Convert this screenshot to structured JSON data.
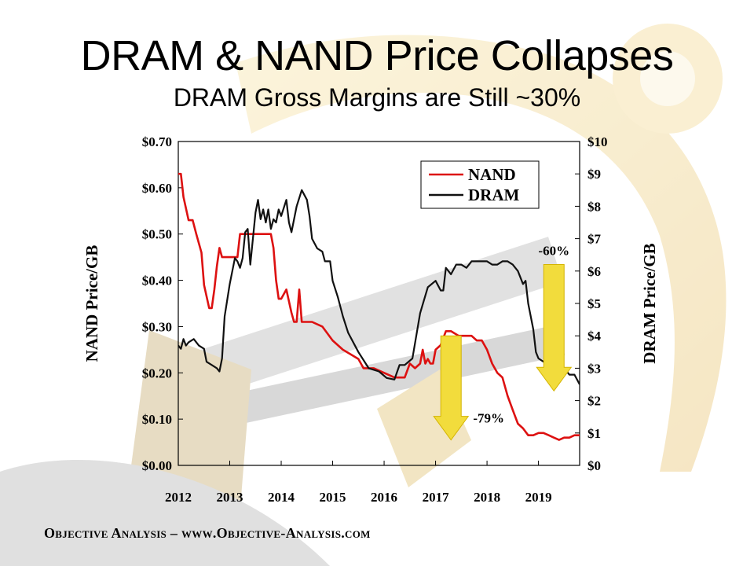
{
  "title": "DRAM & NAND Price Collapses",
  "subtitle": "DRAM Gross Margins are Still ~30%",
  "footer": "Objective Analysis – www.Objective-Analysis.com",
  "chart_data": {
    "type": "line",
    "x_axis": {
      "label": "",
      "ticks": [
        "2012",
        "2013",
        "2014",
        "2015",
        "2016",
        "2017",
        "2018",
        "2019"
      ],
      "range": [
        2012,
        2019.8
      ]
    },
    "y_left": {
      "label": "NAND Price/GB",
      "range": [
        0,
        0.7
      ],
      "ticks": [
        "$0.00",
        "$0.10",
        "$0.20",
        "$0.30",
        "$0.40",
        "$0.50",
        "$0.60",
        "$0.70"
      ]
    },
    "y_right": {
      "label": "DRAM Price/GB",
      "range": [
        0,
        10
      ],
      "ticks": [
        "$0",
        "$1",
        "$2",
        "$3",
        "$4",
        "$5",
        "$6",
        "$7",
        "$8",
        "$9",
        "$10"
      ]
    },
    "legend": {
      "position": "top-right",
      "entries": [
        "NAND",
        "DRAM"
      ]
    },
    "colors": {
      "NAND": "#dd1111",
      "DRAM": "#111111",
      "arrow": "#f2dc3c",
      "arrow_edge": "#d4b400"
    },
    "series": [
      {
        "name": "NAND",
        "axis": "left",
        "x": [
          2012.0,
          2012.05,
          2012.1,
          2012.2,
          2012.28,
          2012.35,
          2012.45,
          2012.5,
          2012.56,
          2012.6,
          2012.65,
          2012.7,
          2012.75,
          2012.8,
          2012.85,
          2012.95,
          2013.05,
          2013.15,
          2013.2,
          2013.3,
          2013.35,
          2013.5,
          2013.6,
          2013.8,
          2013.85,
          2013.9,
          2013.95,
          2014.0,
          2014.1,
          2014.2,
          2014.25,
          2014.3,
          2014.35,
          2014.4,
          2014.5,
          2014.6,
          2014.8,
          2015.0,
          2015.2,
          2015.35,
          2015.5,
          2015.6,
          2015.8,
          2016.0,
          2016.2,
          2016.4,
          2016.5,
          2016.6,
          2016.7,
          2016.75,
          2016.8,
          2016.85,
          2016.9,
          2016.95,
          2017.0,
          2017.1,
          2017.2,
          2017.3,
          2017.45,
          2017.6,
          2017.7,
          2017.8,
          2017.9,
          2018.0,
          2018.1,
          2018.2,
          2018.3,
          2018.4,
          2018.5,
          2018.6,
          2018.7,
          2018.8,
          2018.9,
          2019.0,
          2019.1,
          2019.2,
          2019.3,
          2019.4,
          2019.5,
          2019.6,
          2019.7,
          2019.8
        ],
        "y": [
          0.63,
          0.63,
          0.58,
          0.53,
          0.53,
          0.5,
          0.46,
          0.39,
          0.36,
          0.34,
          0.34,
          0.38,
          0.43,
          0.47,
          0.45,
          0.45,
          0.45,
          0.45,
          0.5,
          0.5,
          0.5,
          0.5,
          0.5,
          0.5,
          0.47,
          0.4,
          0.36,
          0.36,
          0.38,
          0.33,
          0.31,
          0.31,
          0.38,
          0.31,
          0.31,
          0.31,
          0.3,
          0.27,
          0.25,
          0.24,
          0.23,
          0.21,
          0.21,
          0.2,
          0.19,
          0.19,
          0.22,
          0.21,
          0.22,
          0.25,
          0.22,
          0.23,
          0.22,
          0.22,
          0.25,
          0.26,
          0.29,
          0.29,
          0.28,
          0.28,
          0.28,
          0.27,
          0.27,
          0.25,
          0.22,
          0.2,
          0.19,
          0.15,
          0.12,
          0.09,
          0.08,
          0.065,
          0.065,
          0.07,
          0.07,
          0.065,
          0.06,
          0.055,
          0.06,
          0.06,
          0.065,
          0.065
        ]
      },
      {
        "name": "DRAM",
        "axis": "right",
        "x": [
          2012.0,
          2012.05,
          2012.1,
          2012.15,
          2012.2,
          2012.3,
          2012.4,
          2012.5,
          2012.55,
          2012.65,
          2012.75,
          2012.8,
          2012.85,
          2012.9,
          2013.0,
          2013.1,
          2013.15,
          2013.2,
          2013.25,
          2013.3,
          2013.35,
          2013.4,
          2013.45,
          2013.5,
          2013.55,
          2013.6,
          2013.65,
          2013.7,
          2013.75,
          2013.8,
          2013.85,
          2013.9,
          2013.95,
          2014.0,
          2014.1,
          2014.15,
          2014.2,
          2014.3,
          2014.4,
          2014.5,
          2014.55,
          2014.6,
          2014.7,
          2014.8,
          2014.85,
          2014.95,
          2015.0,
          2015.1,
          2015.2,
          2015.3,
          2015.5,
          2015.7,
          2015.9,
          2016.05,
          2016.2,
          2016.3,
          2016.4,
          2016.55,
          2016.7,
          2016.85,
          2017.0,
          2017.1,
          2017.15,
          2017.2,
          2017.3,
          2017.4,
          2017.5,
          2017.6,
          2017.7,
          2017.8,
          2017.9,
          2018.0,
          2018.1,
          2018.2,
          2018.3,
          2018.4,
          2018.5,
          2018.6,
          2018.7,
          2018.75,
          2018.8,
          2018.9,
          2018.95,
          2019.0,
          2019.1,
          2019.2,
          2019.3,
          2019.4,
          2019.5,
          2019.55,
          2019.6,
          2019.7,
          2019.8
        ],
        "y": [
          3.7,
          3.6,
          3.9,
          3.7,
          3.8,
          3.9,
          3.7,
          3.6,
          3.2,
          3.1,
          3.0,
          2.9,
          3.3,
          4.6,
          5.6,
          6.4,
          6.3,
          6.1,
          6.4,
          7.2,
          7.3,
          6.2,
          7.0,
          7.8,
          8.2,
          7.6,
          7.9,
          7.5,
          7.9,
          7.3,
          7.6,
          7.5,
          7.9,
          7.7,
          8.2,
          7.5,
          7.2,
          8.0,
          8.5,
          8.2,
          7.7,
          7.0,
          6.7,
          6.6,
          6.3,
          6.3,
          5.7,
          5.2,
          4.6,
          4.1,
          3.5,
          3.0,
          2.9,
          2.7,
          2.65,
          3.1,
          3.1,
          3.3,
          4.7,
          5.5,
          5.7,
          5.4,
          5.4,
          6.1,
          5.9,
          6.2,
          6.2,
          6.1,
          6.3,
          6.3,
          6.3,
          6.3,
          6.2,
          6.2,
          6.3,
          6.3,
          6.2,
          6.0,
          5.6,
          5.7,
          5.0,
          4.2,
          3.5,
          3.3,
          3.2,
          3.3,
          3.0,
          3.0,
          3.0,
          2.9,
          2.8,
          2.8,
          2.5
        ]
      }
    ],
    "annotations": [
      {
        "text": "-79%",
        "x": 2017.3,
        "from_y": 0.28,
        "to_y": 0.055,
        "axis": "left"
      },
      {
        "text": "-60%",
        "x": 2019.3,
        "from_y": 6.2,
        "to_y": 2.3,
        "axis": "right"
      }
    ]
  }
}
